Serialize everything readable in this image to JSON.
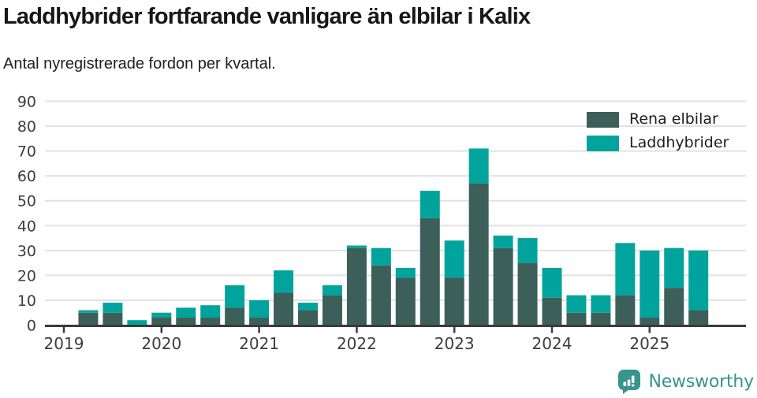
{
  "header": {
    "title": "Laddhybrider fortfarande vanligare än elbilar i Kalix",
    "subtitle": "Antal nyregistrerade fordon per kvartal."
  },
  "chart_data": {
    "type": "bar",
    "stacked": true,
    "title": "Laddhybrider fortfarande vanligare än elbilar i Kalix",
    "subtitle": "Antal nyregistrerade fordon per kvartal.",
    "categories": [
      "2019 Q1",
      "2019 Q2",
      "2019 Q3",
      "2019 Q4",
      "2020 Q1",
      "2020 Q2",
      "2020 Q3",
      "2020 Q4",
      "2021 Q1",
      "2021 Q2",
      "2021 Q3",
      "2021 Q4",
      "2022 Q1",
      "2022 Q2",
      "2022 Q3",
      "2022 Q4",
      "2023 Q1",
      "2023 Q2",
      "2023 Q3",
      "2023 Q4",
      "2024 Q1",
      "2024 Q2",
      "2024 Q3",
      "2024 Q4",
      "2025 Q1",
      "2025 Q2",
      "2025 Q3"
    ],
    "series": [
      {
        "name": "Rena elbilar",
        "color": "#3d5f5a",
        "values": [
          0,
          5,
          5,
          0,
          3,
          3,
          3,
          7,
          3,
          13,
          6,
          12,
          31,
          24,
          19,
          43,
          19,
          57,
          31,
          25,
          11,
          5,
          5,
          12,
          3,
          15,
          6
        ]
      },
      {
        "name": "Laddhybrider",
        "color": "#00a49c",
        "values": [
          0,
          1,
          4,
          2,
          2,
          4,
          5,
          9,
          7,
          9,
          3,
          4,
          1,
          7,
          4,
          11,
          15,
          14,
          5,
          10,
          12,
          7,
          7,
          21,
          27,
          16,
          24
        ]
      }
    ],
    "totals": [
      0,
      6,
      9,
      2,
      5,
      7,
      8,
      16,
      10,
      22,
      9,
      16,
      32,
      31,
      23,
      54,
      34,
      71,
      36,
      35,
      23,
      12,
      12,
      33,
      30,
      31,
      30
    ],
    "xlabel": "",
    "ylabel": "",
    "ylim": [
      0,
      90
    ],
    "y_ticks": [
      0,
      10,
      20,
      30,
      40,
      50,
      60,
      70,
      80,
      90
    ],
    "x_tick_labels": [
      "2019",
      "2020",
      "2021",
      "2022",
      "2023",
      "2024",
      "2025"
    ],
    "grid": "horizontal",
    "legend_position": "top-right",
    "axis_text_color": "#3d3d3d",
    "gridline_color": "#e2e2e2",
    "axis_line_color": "#3a3a3a"
  },
  "footer": {
    "brand": "Newsworthy",
    "brand_color": "#37948f"
  }
}
